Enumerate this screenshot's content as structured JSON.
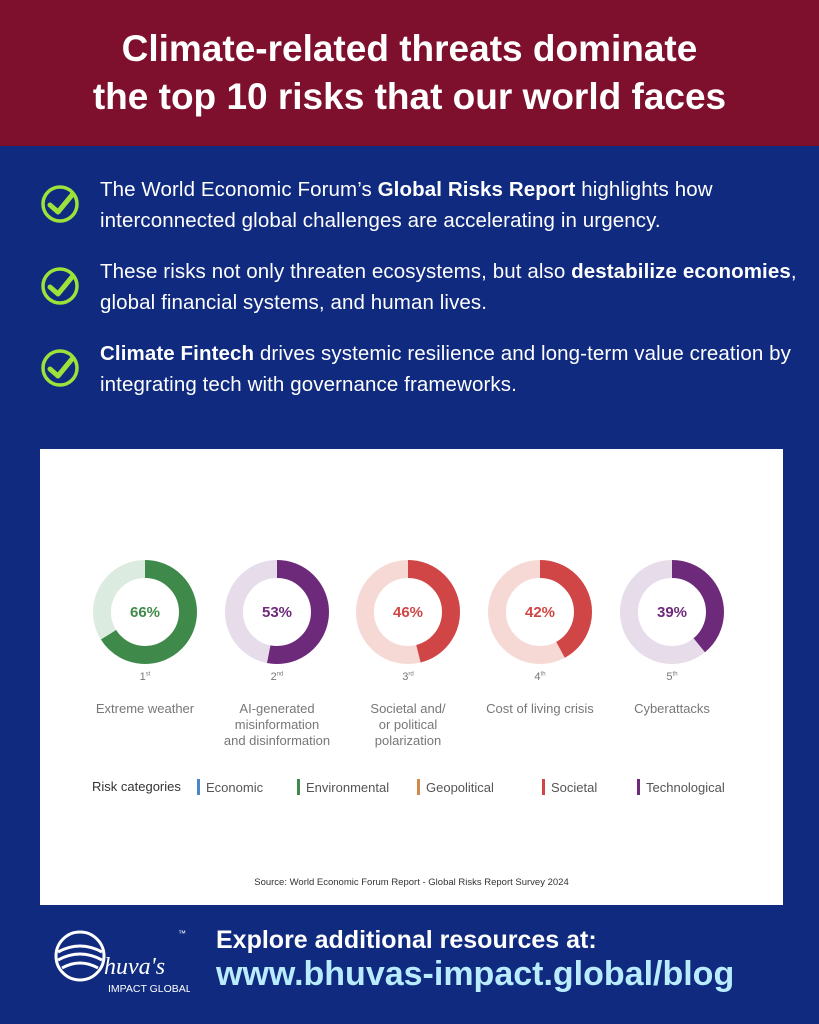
{
  "header": {
    "line1": "Climate-related threats dominate",
    "line2": "the top 10 risks that our world faces"
  },
  "bullets": [
    {
      "pre": "The World Economic Forum’s ",
      "bold": "Global Risks Report",
      "post": " highlights how interconnected global challenges are accelerating in urgency."
    },
    {
      "pre": "These risks not only threaten ecosystems, but also ",
      "bold": "destabilize economies",
      "post": ", global financial systems, and human lives."
    },
    {
      "pre": "",
      "bold": "Climate Fintech",
      "post": " drives systemic resilience and long-term value creation by integrating tech with governance frameworks."
    }
  ],
  "chart_data": {
    "type": "pie",
    "items": [
      {
        "rank": "1",
        "suffix": "st",
        "value": 66,
        "label_text": "66%",
        "label": [
          "Extreme weather"
        ],
        "category": "Environmental"
      },
      {
        "rank": "2",
        "suffix": "nd",
        "value": 53,
        "label_text": "53%",
        "label": [
          "AI-generated",
          "misinformation",
          "and disinformation"
        ],
        "category": "Technological"
      },
      {
        "rank": "3",
        "suffix": "rd",
        "value": 46,
        "label_text": "46%",
        "label": [
          "Societal and/",
          "or political",
          "polarization"
        ],
        "category": "Societal"
      },
      {
        "rank": "4",
        "suffix": "th",
        "value": 42,
        "label_text": "42%",
        "label": [
          "Cost of living crisis"
        ],
        "category": "Societal"
      },
      {
        "rank": "5",
        "suffix": "th",
        "value": 39,
        "label_text": "39%",
        "label": [
          "Cyberattacks"
        ],
        "category": "Technological"
      }
    ],
    "legend_title": "Risk categories",
    "legend": [
      {
        "name": "Economic",
        "color": "#4a86c8"
      },
      {
        "name": "Environmental",
        "color": "#3f8a4a"
      },
      {
        "name": "Geopolitical",
        "color": "#d08a4a"
      },
      {
        "name": "Societal",
        "color": "#d04545"
      },
      {
        "name": "Technological",
        "color": "#6e2a7a"
      }
    ],
    "category_colors": {
      "Environmental": {
        "fg": "#3f8a4a",
        "bg": "#dcebdf",
        "text": "#3f8a4a"
      },
      "Technological": {
        "fg": "#6e2a7a",
        "bg": "#e6dcea",
        "text": "#6e2a7a"
      },
      "Societal": {
        "fg": "#d04545",
        "bg": "#f6d9d5",
        "text": "#d04545"
      }
    },
    "source": "Source: World Economic Forum Report - Global Risks Report Survey 2024"
  },
  "footer": {
    "logo_text": "huva's",
    "logo_sub": "IMPACT GLOBAL",
    "tm": "™",
    "explore": "Explore additional resources at:",
    "url": "www.bhuvas-impact.global/blog"
  },
  "colors": {
    "background": "#0f2a7e",
    "header": "#7e0f2d",
    "check": "#9be33a",
    "url": "#b9ecff"
  }
}
